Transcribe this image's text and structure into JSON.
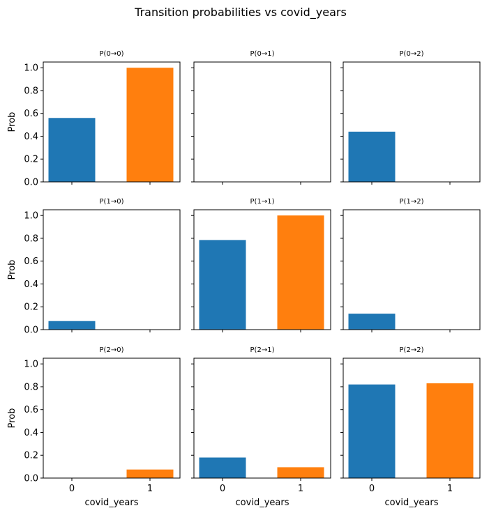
{
  "chart_data": {
    "type": "bar",
    "title": "Transition probabilities vs covid_years",
    "xlabel": "covid_years",
    "ylabel": "Prob",
    "categories": [
      "0",
      "1"
    ],
    "ylim": [
      0,
      1.05
    ],
    "yticks": [
      "0.0",
      "0.2",
      "0.4",
      "0.6",
      "0.8",
      "1.0"
    ],
    "bar_colors": [
      "#1f77b4",
      "#ff7f0e"
    ],
    "grid": false,
    "rows": 3,
    "cols": 3,
    "panels": [
      {
        "title": "P(0→0)",
        "values": [
          0.56,
          1.0
        ]
      },
      {
        "title": "P(0→1)",
        "values": [
          0.0,
          0.0
        ]
      },
      {
        "title": "P(0→2)",
        "values": [
          0.44,
          0.0
        ]
      },
      {
        "title": "P(1→0)",
        "values": [
          0.075,
          0.0
        ]
      },
      {
        "title": "P(1→1)",
        "values": [
          0.785,
          1.0
        ]
      },
      {
        "title": "P(1→2)",
        "values": [
          0.14,
          0.0
        ]
      },
      {
        "title": "P(2→0)",
        "values": [
          0.0,
          0.075
        ]
      },
      {
        "title": "P(2→1)",
        "values": [
          0.18,
          0.095
        ]
      },
      {
        "title": "P(2→2)",
        "values": [
          0.82,
          0.83
        ]
      }
    ]
  }
}
